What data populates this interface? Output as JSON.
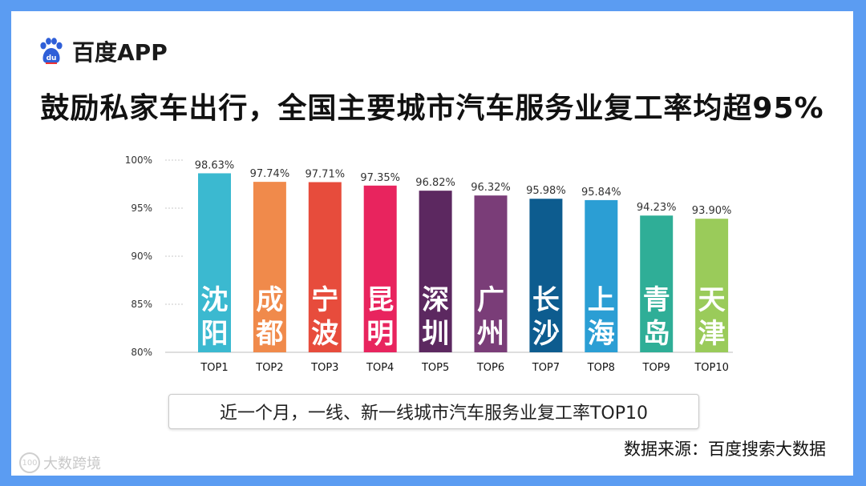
{
  "brand": {
    "name": "百度APP",
    "icon": "baidu-paw-icon",
    "color": "#2f5fd8"
  },
  "title": "鼓励私家车出行，全国主要城市汽车服务业复工率均超95%",
  "caption": "近一个月，一线、新一线城市汽车服务业复工率TOP10",
  "source": "数据来源：百度搜索大数据",
  "watermark": {
    "text": "大数跨境",
    "mark": "100"
  },
  "chart_data": {
    "type": "bar",
    "categories": [
      "TOP1",
      "TOP2",
      "TOP3",
      "TOP4",
      "TOP5",
      "TOP6",
      "TOP7",
      "TOP8",
      "TOP9",
      "TOP10"
    ],
    "cities": [
      "沈阳",
      "成都",
      "宁波",
      "昆明",
      "深圳",
      "广州",
      "长沙",
      "上海",
      "青岛",
      "天津"
    ],
    "values": [
      98.63,
      97.74,
      97.71,
      97.35,
      96.82,
      96.32,
      95.98,
      95.84,
      94.23,
      93.9
    ],
    "value_labels": [
      "98.63%",
      "97.74%",
      "97.71%",
      "97.35%",
      "96.82%",
      "96.32%",
      "95.98%",
      "95.84%",
      "94.23%",
      "93.90%"
    ],
    "colors": [
      "#3bb9d0",
      "#f08a4b",
      "#e74c3c",
      "#e8245e",
      "#5c2860",
      "#7a3d78",
      "#0d5c8f",
      "#2b9ed4",
      "#2fae97",
      "#9acb5a"
    ],
    "yticks": [
      80,
      85,
      90,
      95,
      100
    ],
    "ytick_labels": [
      "80%",
      "85%",
      "90%",
      "95%",
      "100%"
    ],
    "ylim": [
      80,
      100
    ],
    "grid": true
  }
}
